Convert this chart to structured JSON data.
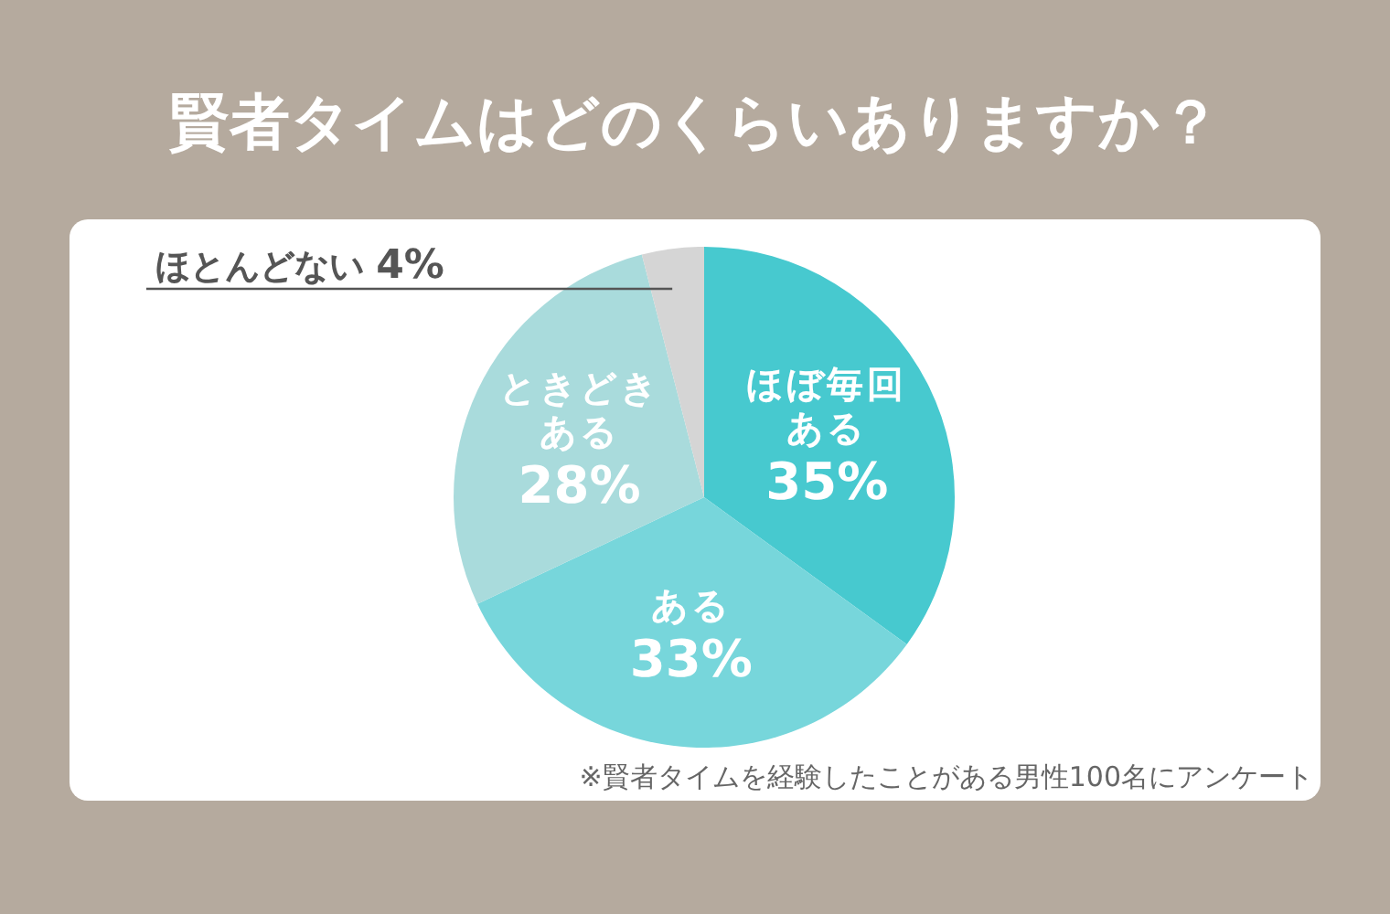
{
  "chart_data": {
    "type": "pie",
    "title": "賢者タイムはどのくらいありますか？",
    "categories": [
      "ほぼ毎回ある",
      "ある",
      "ときどきある",
      "ほとんどない"
    ],
    "values": [
      35,
      33,
      28,
      4
    ],
    "value_labels": [
      "35%",
      "33%",
      "28%",
      "4%"
    ],
    "colors": [
      "#47c9cf",
      "#77d6db",
      "#a9dbdc",
      "#d5d5d5"
    ],
    "annotations": [
      "※賢者タイムを経験したことがある男性100名にアンケート"
    ]
  }
}
